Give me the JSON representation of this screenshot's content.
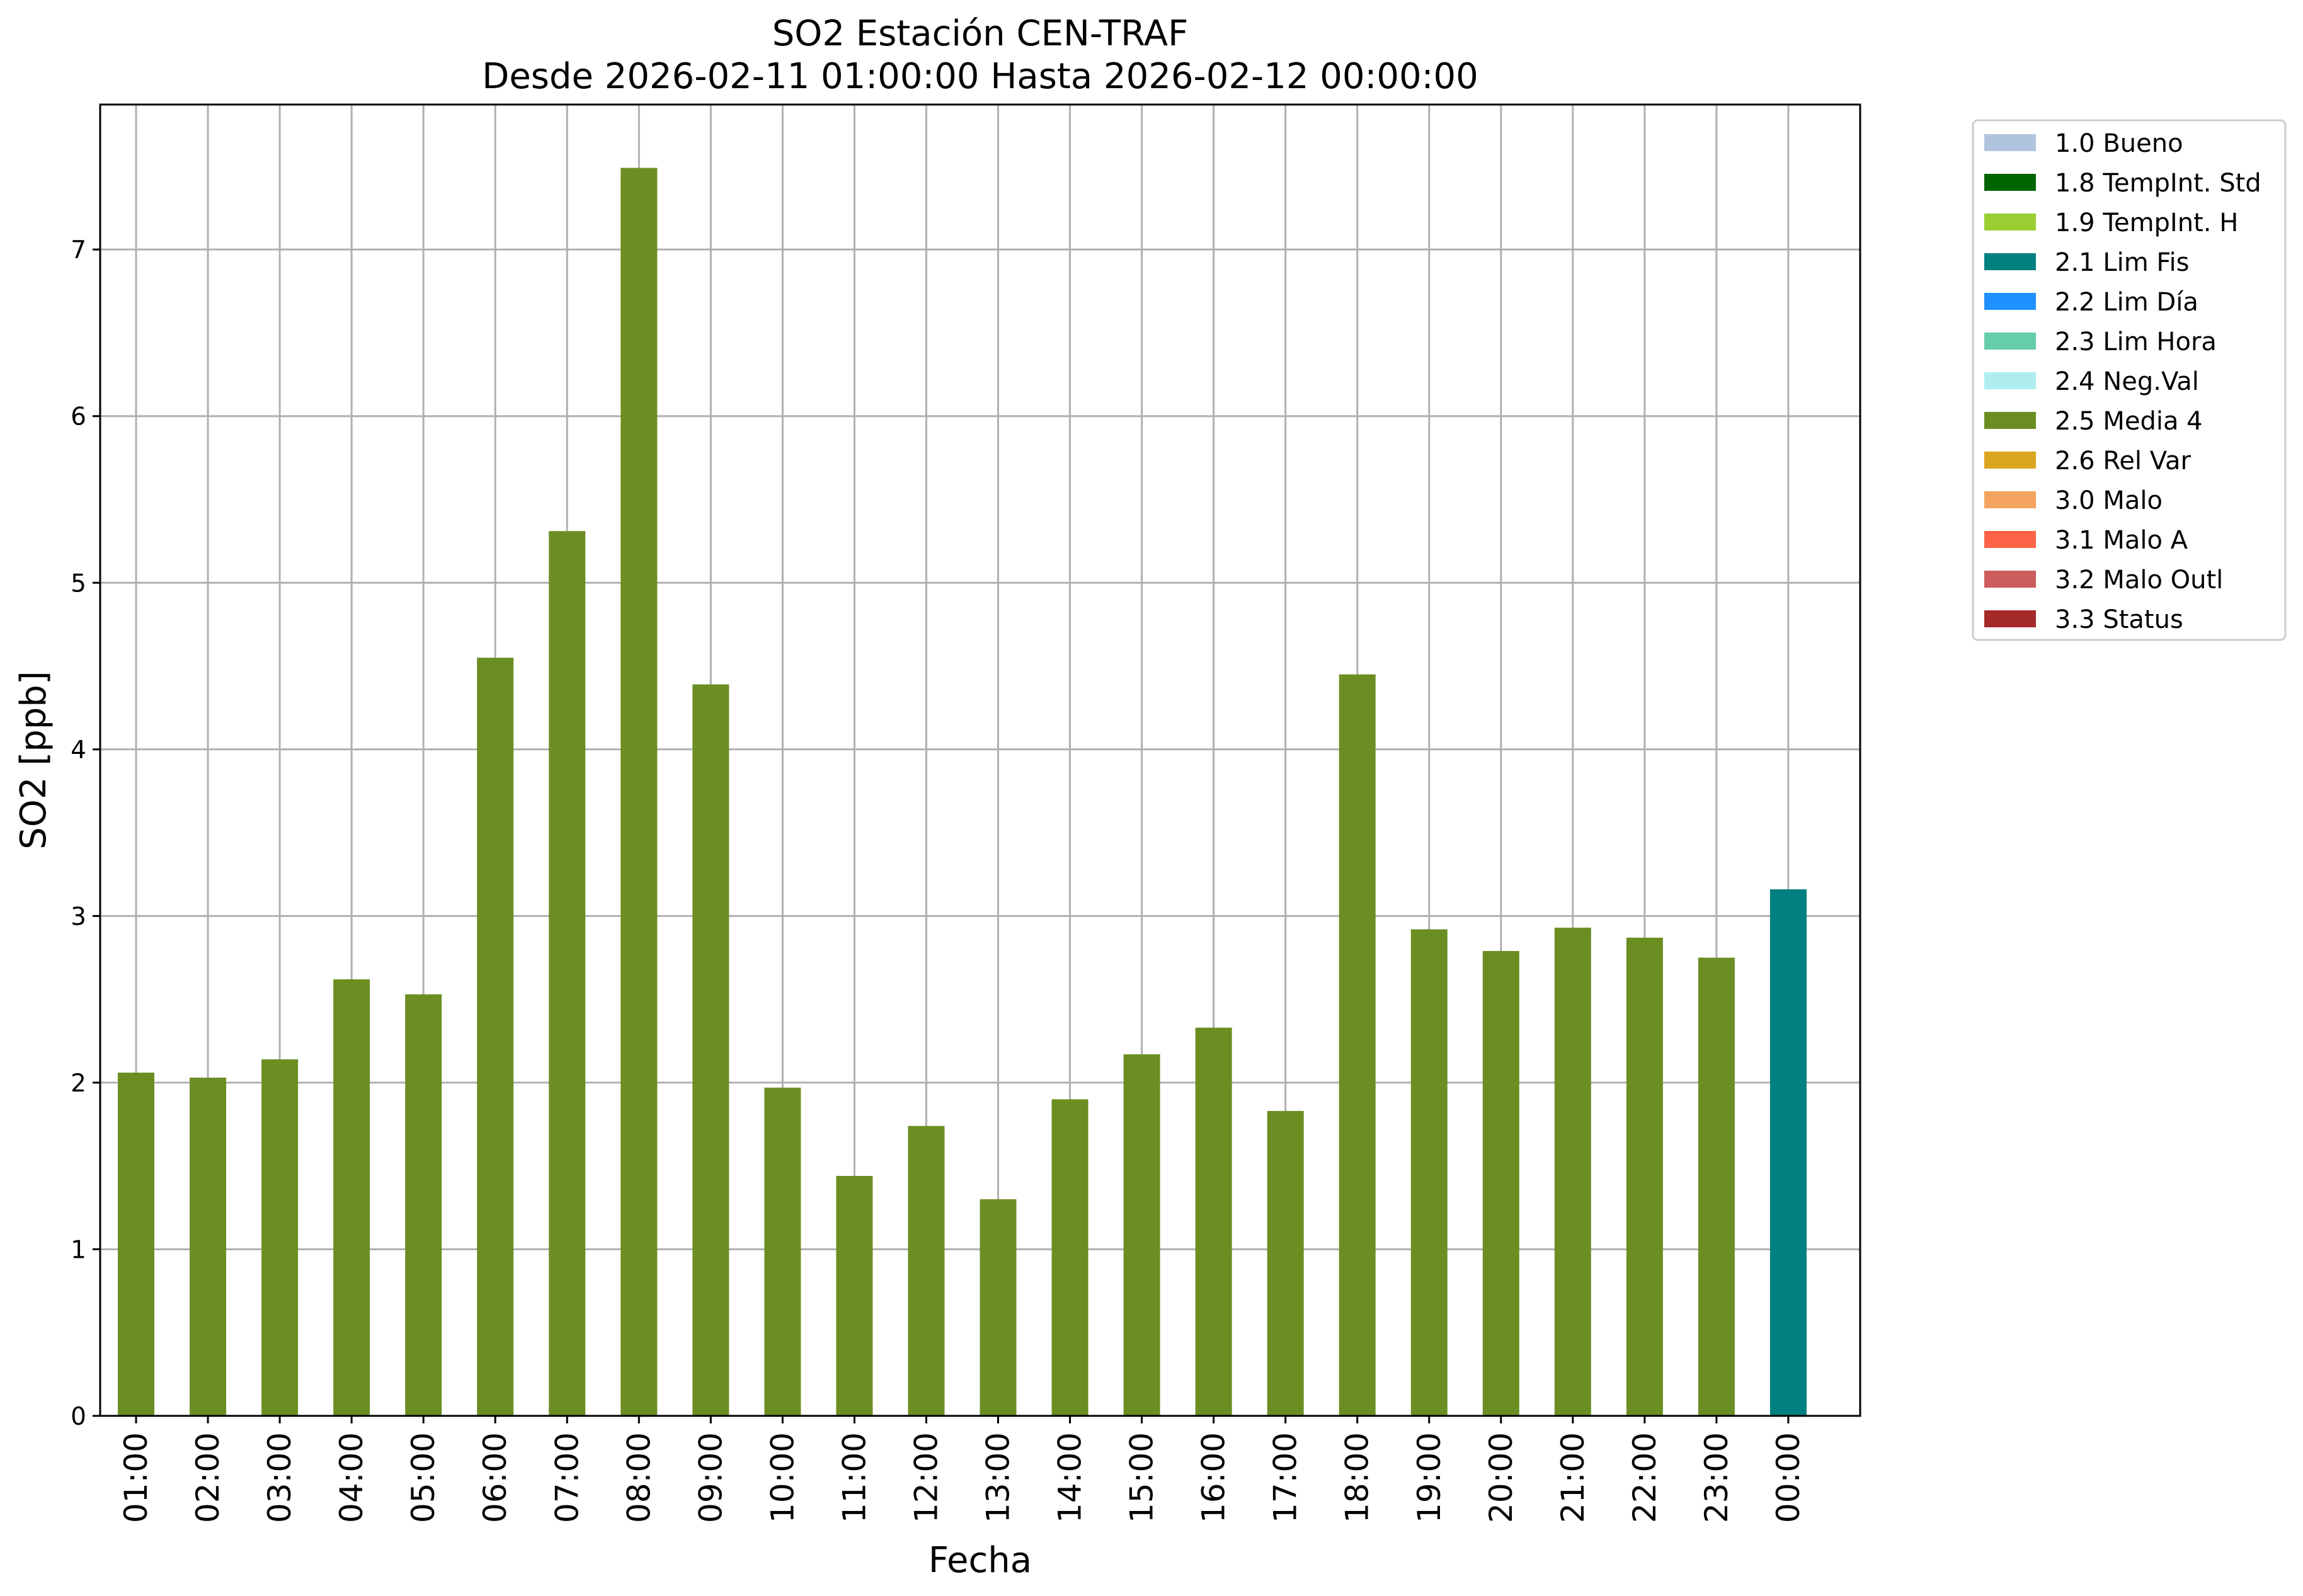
{
  "chart_data": {
    "type": "bar",
    "title": "SO2 Estación CEN-TRAF",
    "subtitle": "Desde 2026-02-11 01:00:00 Hasta 2026-02-12 00:00:00",
    "xlabel": "Fecha",
    "ylabel": "SO2 [ppb]",
    "ylim": [
      0,
      7.87
    ],
    "yticks": [
      0,
      1,
      2,
      3,
      4,
      5,
      6,
      7
    ],
    "grid": true,
    "legend_position": "outside-top-right",
    "categories": [
      "01:00",
      "02:00",
      "03:00",
      "04:00",
      "05:00",
      "06:00",
      "07:00",
      "08:00",
      "09:00",
      "10:00",
      "11:00",
      "12:00",
      "13:00",
      "14:00",
      "15:00",
      "16:00",
      "17:00",
      "18:00",
      "19:00",
      "20:00",
      "21:00",
      "22:00",
      "23:00",
      "00:00"
    ],
    "values": [
      2.06,
      2.03,
      2.14,
      2.62,
      2.53,
      4.55,
      5.31,
      7.49,
      4.39,
      1.97,
      1.44,
      1.74,
      1.3,
      1.9,
      2.17,
      2.33,
      1.83,
      4.45,
      2.92,
      2.79,
      2.93,
      2.87,
      2.75,
      3.16
    ],
    "flags": [
      "2.5 Media 4",
      "2.5 Media 4",
      "2.5 Media 4",
      "2.5 Media 4",
      "2.5 Media 4",
      "2.5 Media 4",
      "2.5 Media 4",
      "2.5 Media 4",
      "2.5 Media 4",
      "2.5 Media 4",
      "2.5 Media 4",
      "2.5 Media 4",
      "2.5 Media 4",
      "2.5 Media 4",
      "2.5 Media 4",
      "2.5 Media 4",
      "2.5 Media 4",
      "2.5 Media 4",
      "2.5 Media 4",
      "2.5 Media 4",
      "2.5 Media 4",
      "2.5 Media 4",
      "2.5 Media 4",
      "2.1 Lim Fis"
    ],
    "legend": [
      {
        "label": "1.0 Bueno",
        "color": "#b0c4de"
      },
      {
        "label": "1.8 TempInt. Std",
        "color": "#006400"
      },
      {
        "label": "1.9 TempInt. H",
        "color": "#9acd32"
      },
      {
        "label": "2.1 Lim Fis",
        "color": "#008080"
      },
      {
        "label": "2.2 Lim Día",
        "color": "#1e90ff"
      },
      {
        "label": "2.3 Lim Hora",
        "color": "#66cdaa"
      },
      {
        "label": "2.4 Neg.Val",
        "color": "#afeeee"
      },
      {
        "label": "2.5 Media 4",
        "color": "#6b8e23"
      },
      {
        "label": "2.6 Rel Var",
        "color": "#daa520"
      },
      {
        "label": "3.0 Malo",
        "color": "#f4a460"
      },
      {
        "label": "3.1 Malo A",
        "color": "#ff6347"
      },
      {
        "label": "3.2 Malo Outl",
        "color": "#cd5c5c"
      },
      {
        "label": "3.3 Status",
        "color": "#a52a2a"
      }
    ]
  }
}
